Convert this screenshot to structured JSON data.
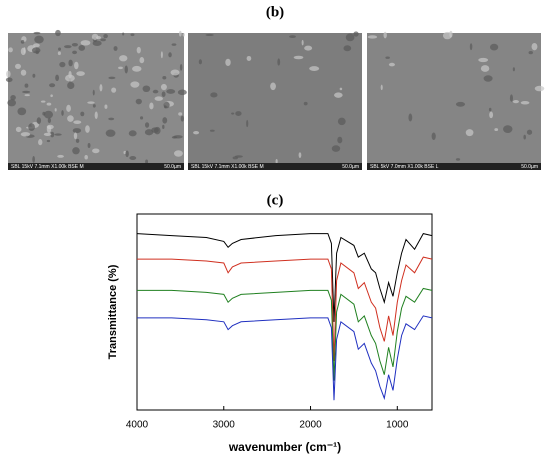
{
  "panel_b": {
    "label": "(b)",
    "images": [
      {
        "caption": "SBL 15kV 7.1mm X1.00k BSE M",
        "scale": "50.0µm"
      },
      {
        "caption": "SBL 15kV 7.1mm X1.00k BSE M",
        "scale": "50.0µm"
      },
      {
        "caption": "SBL 5kV 7.0mm X1.00k BSE L",
        "scale": "50.0µm"
      }
    ]
  },
  "chart_data": {
    "type": "line",
    "title": "(c)",
    "x_label": "wavenumber (cm⁻¹)",
    "y_label": "Transmittance (%)",
    "x": [
      4000,
      3600,
      3200,
      3000,
      2950,
      2900,
      2800,
      2400,
      2000,
      1800,
      1760,
      1730,
      1700,
      1650,
      1500,
      1450,
      1380,
      1300,
      1250,
      1200,
      1150,
      1100,
      1050,
      1000,
      950,
      900,
      800,
      700,
      600
    ],
    "xlim": [
      4000,
      600
    ],
    "xticks": [
      4000,
      3000,
      2000,
      1000
    ],
    "ylim": [
      0,
      100
    ],
    "series": [
      {
        "color": "#000000",
        "values": [
          90,
          89,
          88,
          86,
          83,
          85,
          87,
          89,
          90,
          90,
          85,
          45,
          80,
          88,
          84,
          78,
          80,
          72,
          70,
          62,
          55,
          65,
          58,
          70,
          80,
          87,
          82,
          90,
          89
        ]
      },
      {
        "color": "#d03020",
        "values": [
          77,
          77,
          76,
          75,
          70,
          73,
          75,
          76,
          77,
          77,
          72,
          25,
          66,
          75,
          70,
          62,
          65,
          55,
          52,
          42,
          35,
          48,
          38,
          55,
          66,
          74,
          70,
          78,
          77
        ]
      },
      {
        "color": "#208020",
        "values": [
          61,
          61,
          60,
          59,
          55,
          57,
          59,
          60,
          61,
          61,
          56,
          15,
          50,
          59,
          54,
          45,
          48,
          38,
          34,
          25,
          18,
          32,
          22,
          40,
          52,
          58,
          55,
          62,
          61
        ]
      },
      {
        "color": "#2030c0",
        "values": [
          47,
          47,
          46,
          45,
          41,
          43,
          45,
          46,
          47,
          47,
          42,
          5,
          36,
          45,
          40,
          31,
          34,
          24,
          20,
          12,
          6,
          18,
          10,
          26,
          38,
          44,
          41,
          48,
          47
        ]
      }
    ]
  }
}
